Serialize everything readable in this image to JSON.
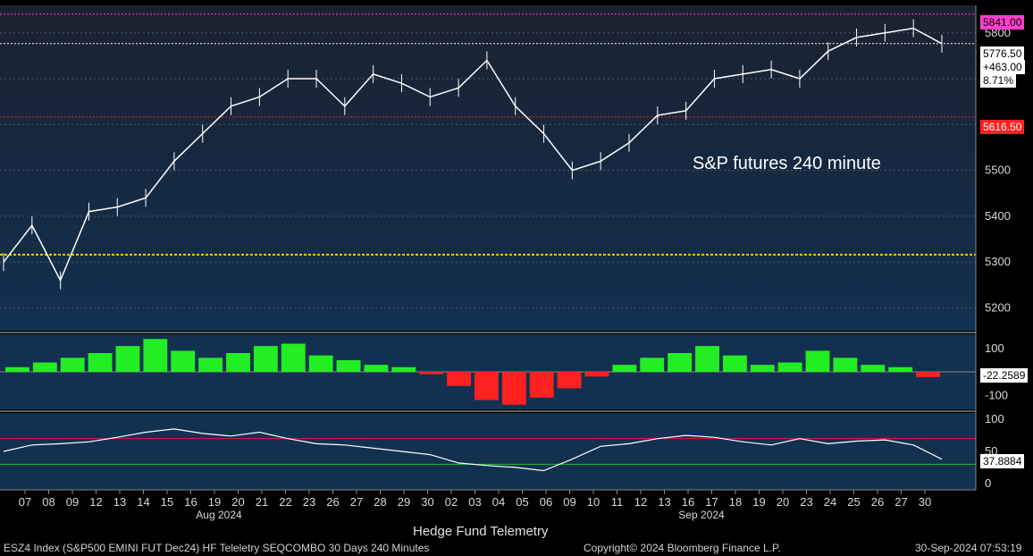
{
  "chart_data": [
    {
      "type": "candlestick-line",
      "panel": "price",
      "annotation": "S&P futures 240 minute",
      "ylim": [
        5150,
        5860
      ],
      "yticks": [
        5200,
        5300,
        5400,
        5500,
        5600,
        5700,
        5800
      ],
      "x": [
        0,
        2,
        4,
        6,
        8,
        10,
        12,
        14,
        16,
        18,
        20,
        22,
        24,
        26,
        28,
        30,
        32,
        34,
        36,
        38,
        40,
        42,
        44,
        46,
        48,
        50,
        52,
        54,
        56,
        58,
        60,
        62,
        64,
        66
      ],
      "close": [
        5300,
        5380,
        5260,
        5410,
        5420,
        5440,
        5520,
        5580,
        5640,
        5660,
        5700,
        5700,
        5640,
        5710,
        5690,
        5660,
        5680,
        5740,
        5640,
        5580,
        5500,
        5520,
        5560,
        5620,
        5630,
        5700,
        5710,
        5720,
        5700,
        5760,
        5790,
        5800,
        5810,
        5776.5
      ],
      "horizontal_levels": [
        {
          "value": 5841.0,
          "label": "5841.00",
          "color": "#ff3fcc"
        },
        {
          "value": 5776.5,
          "label": "5776.50",
          "color": "#ffffff"
        },
        {
          "value": 5616.5,
          "label": "5616.50",
          "color": "#ff2020"
        },
        {
          "value": 5316,
          "label": "",
          "color": "#f5d000"
        }
      ],
      "last_price_box": {
        "price": "5776.50",
        "change": "+463.00",
        "pct": "8.71%"
      }
    },
    {
      "type": "histogram",
      "panel": "momentum",
      "ylim": [
        -160,
        160
      ],
      "yticks": [
        100,
        -100
      ],
      "last_value": "-22.2589",
      "values": [
        20,
        40,
        60,
        80,
        110,
        140,
        90,
        60,
        80,
        110,
        120,
        70,
        50,
        30,
        20,
        -10,
        -60,
        -120,
        -140,
        -110,
        -70,
        -20,
        30,
        60,
        80,
        110,
        70,
        30,
        40,
        90,
        60,
        30,
        20,
        -22.26
      ]
    },
    {
      "type": "line",
      "panel": "oscillator",
      "ylim": [
        -10,
        110
      ],
      "yticks": [
        100,
        50,
        0
      ],
      "overbought": 70,
      "oversold": 30,
      "last_value": "37.8884",
      "values": [
        50,
        60,
        62,
        65,
        72,
        80,
        85,
        78,
        74,
        80,
        70,
        62,
        60,
        55,
        50,
        45,
        32,
        28,
        25,
        20,
        38,
        58,
        62,
        70,
        75,
        72,
        65,
        60,
        70,
        62,
        66,
        68,
        60,
        37.89
      ]
    }
  ],
  "x_axis": {
    "day_labels": [
      "07",
      "08",
      "09",
      "12",
      "13",
      "14",
      "15",
      "16",
      "19",
      "20",
      "21",
      "22",
      "23",
      "26",
      "27",
      "28",
      "29",
      "30",
      "02",
      "03",
      "04",
      "05",
      "06",
      "09",
      "10",
      "11",
      "12",
      "13",
      "16",
      "17",
      "18",
      "19",
      "20",
      "23",
      "24",
      "25",
      "26",
      "27",
      "30"
    ],
    "months": [
      "Aug 2024",
      "Sep 2024"
    ]
  },
  "subtitle": "Hedge Fund Telemetry",
  "footer": {
    "left": "ESZ4 Index (S&P500 EMINI FUT  Dec24) HF Teleletry SEQCOMBO 30 Days 240 Minutes",
    "center": "Copyright© 2024 Bloomberg Finance L.P.",
    "right": "30-Sep-2024 07:53:19"
  },
  "colors": {
    "bg_top": "#1a2230",
    "bg_bottom": "#123050",
    "price_line": "#ffffff",
    "sequential_red": "#ff2020",
    "sequential_green": "#22ee22",
    "magenta": "#e040e0",
    "yellow": "#f5d000"
  }
}
